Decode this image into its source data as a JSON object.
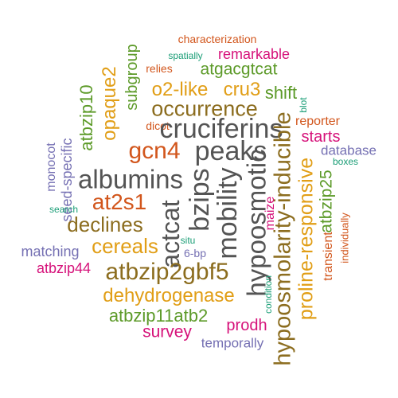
{
  "colors": {
    "dark_gray": "#545454",
    "brown": "#8c6d1f",
    "gold": "#e19e16",
    "green": "#5c9a28",
    "magenta": "#d6127a",
    "orange": "#d2561c",
    "purple": "#7570b3",
    "teal": "#1b9e77"
  },
  "words": [
    {
      "text": "characterization",
      "color": "orange"
    },
    {
      "text": "spatially",
      "color": "teal"
    },
    {
      "text": "remarkable",
      "color": "magenta"
    },
    {
      "text": "relies",
      "color": "orange"
    },
    {
      "text": "atgacgtcat",
      "color": "green"
    },
    {
      "text": "subgroup",
      "color": "green"
    },
    {
      "text": "opaque2",
      "color": "gold"
    },
    {
      "text": "o2-like",
      "color": "gold"
    },
    {
      "text": "cru3",
      "color": "gold"
    },
    {
      "text": "atbzip10",
      "color": "green"
    },
    {
      "text": "shift",
      "color": "green"
    },
    {
      "text": "blot",
      "color": "teal"
    },
    {
      "text": "occurrence",
      "color": "brown"
    },
    {
      "text": "reporter",
      "color": "orange"
    },
    {
      "text": "dicot",
      "color": "orange"
    },
    {
      "text": "cruciferins",
      "color": "dark_gray"
    },
    {
      "text": "starts",
      "color": "magenta"
    },
    {
      "text": "gcn4",
      "color": "orange"
    },
    {
      "text": "peaks",
      "color": "dark_gray"
    },
    {
      "text": "database",
      "color": "purple"
    },
    {
      "text": "boxes",
      "color": "teal"
    },
    {
      "text": "monocot",
      "color": "purple"
    },
    {
      "text": "seed-specific",
      "color": "purple"
    },
    {
      "text": "albumins",
      "color": "dark_gray"
    },
    {
      "text": "bzips",
      "color": "dark_gray"
    },
    {
      "text": "mobility",
      "color": "dark_gray"
    },
    {
      "text": "hypoosmotic",
      "color": "dark_gray"
    },
    {
      "text": "hypoosmolarity-inducible",
      "color": "brown"
    },
    {
      "text": "proline-responsive",
      "color": "gold"
    },
    {
      "text": "atbzip25",
      "color": "green"
    },
    {
      "text": "at2s1",
      "color": "orange"
    },
    {
      "text": "search",
      "color": "teal"
    },
    {
      "text": "actcat",
      "color": "dark_gray"
    },
    {
      "text": "maize",
      "color": "magenta"
    },
    {
      "text": "declines",
      "color": "brown"
    },
    {
      "text": "individually",
      "color": "orange"
    },
    {
      "text": "transient",
      "color": "orange"
    },
    {
      "text": "situ",
      "color": "teal"
    },
    {
      "text": "cereals",
      "color": "gold"
    },
    {
      "text": "matching",
      "color": "purple"
    },
    {
      "text": "6-bp",
      "color": "purple"
    },
    {
      "text": "atbzip44",
      "color": "magenta"
    },
    {
      "text": "atbzip2gbf5",
      "color": "brown"
    },
    {
      "text": "condition",
      "color": "teal"
    },
    {
      "text": "dehydrogenase",
      "color": "gold"
    },
    {
      "text": "atbzip11atb2",
      "color": "green"
    },
    {
      "text": "prodh",
      "color": "magenta"
    },
    {
      "text": "survey",
      "color": "magenta"
    },
    {
      "text": "temporally",
      "color": "purple"
    }
  ]
}
